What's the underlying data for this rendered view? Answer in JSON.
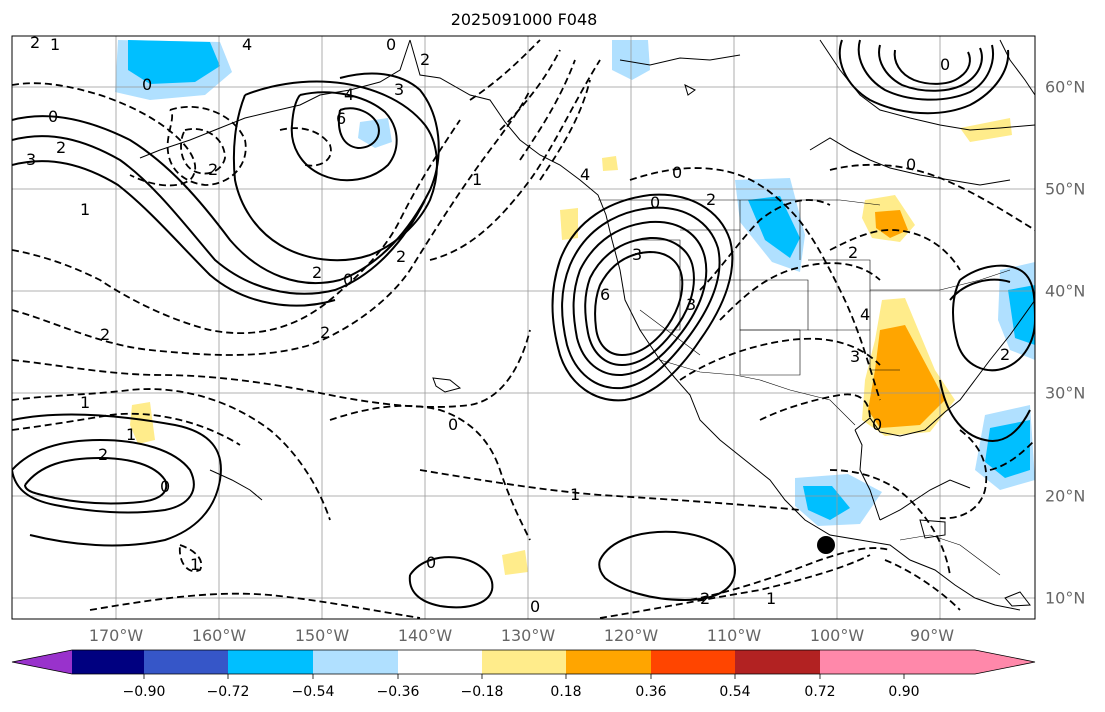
{
  "title": "2025091000 F048",
  "longitude_labels": [
    "170°W",
    "160°W",
    "150°W",
    "140°W",
    "130°W",
    "120°W",
    "110°W",
    "100°W",
    "90°W"
  ],
  "latitude_labels": [
    "60°N",
    "50°N",
    "40°N",
    "30°N",
    "20°N",
    "10°N"
  ],
  "colorbar": {
    "ticks": [
      "−0.90",
      "−0.72",
      "−0.54",
      "−0.36",
      "−0.18",
      "0.18",
      "0.36",
      "0.54",
      "0.72",
      "0.90"
    ],
    "colors": [
      "#9932cc",
      "#000080",
      "#3656c8",
      "#00bfff",
      "#b0e0ff",
      "#ffffff",
      "#ffec8b",
      "#ffa500",
      "#ff4500",
      "#b22222",
      "#ff88aa"
    ]
  },
  "contour_labels": [
    "2",
    "1",
    "0",
    "4",
    "3",
    "2",
    "1",
    "0",
    "6",
    "4",
    "3",
    "0",
    "2",
    "2",
    "2",
    "2",
    "0",
    "2",
    "2",
    "4",
    "6",
    "0",
    "3",
    "1",
    "0",
    "2",
    "3",
    "4",
    "0",
    "2",
    "2",
    "3",
    "0",
    "1",
    "2",
    "1",
    "0",
    "1",
    "1",
    "0",
    "0",
    "0",
    "1",
    "0",
    "2"
  ],
  "colors": {
    "neg_strong": "#00bfff",
    "neg_weak": "#b0e0ff",
    "pos_weak": "#ffec8b",
    "pos_strong": "#ffa500"
  }
}
